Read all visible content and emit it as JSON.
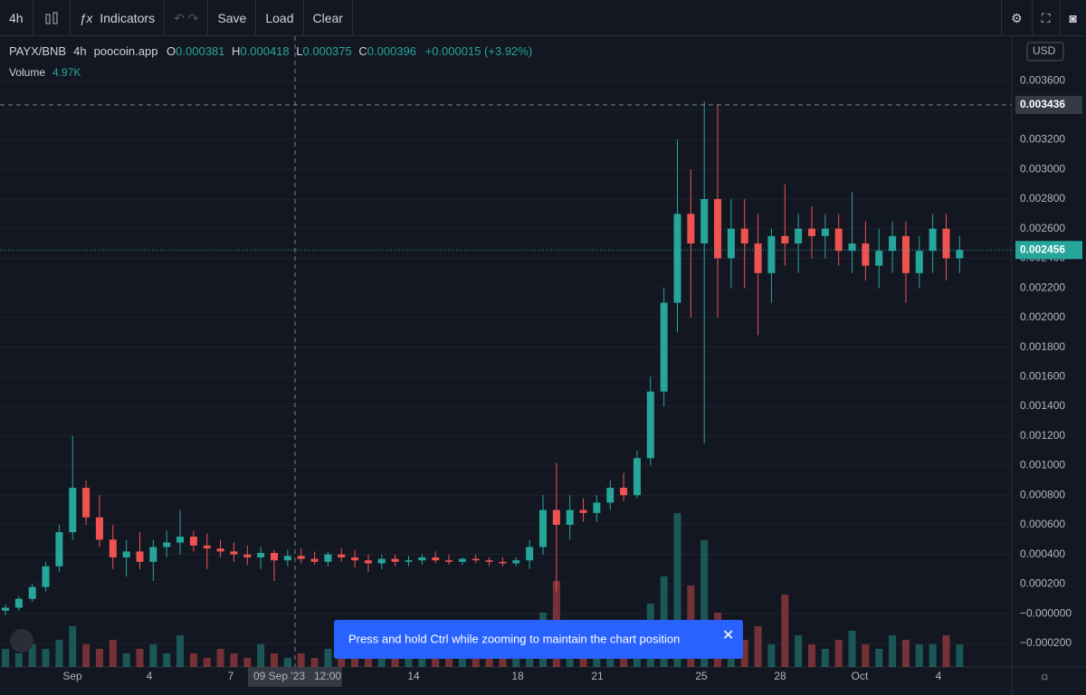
{
  "toolbar": {
    "interval": "4h",
    "indicators": "Indicators",
    "save": "Save",
    "load": "Load",
    "clear": "Clear"
  },
  "legend": {
    "symbol": "PAYX/BNB",
    "interval": "4h",
    "source": "poocoin.app",
    "o_label": "O",
    "o": "0.000381",
    "h_label": "H",
    "h": "0.000418",
    "l_label": "L",
    "l": "0.000375",
    "c_label": "C",
    "c": "0.000396",
    "change": "+0.000015 (+3.92%)",
    "volume_label": "Volume",
    "volume": "4.97K"
  },
  "currency": "USD",
  "crosshair_time": "09 Sep '23   12:00",
  "toast": "Press and hold Ctrl while zooming to maintain the chart position",
  "chart_data": {
    "type": "candlestick",
    "up_color": "#26a69a",
    "down_color": "#ef5350",
    "ylim": [
      -0.00036,
      0.0039
    ],
    "yticks": [
      {
        "value": 0.0036,
        "label": "0.003600"
      },
      {
        "value": 0.0034,
        "label": "0.003400"
      },
      {
        "value": 0.0032,
        "label": "0.003200"
      },
      {
        "value": 0.003,
        "label": "0.003000"
      },
      {
        "value": 0.0028,
        "label": "0.002800"
      },
      {
        "value": 0.0026,
        "label": "0.002600"
      },
      {
        "value": 0.0024,
        "label": "0.002400"
      },
      {
        "value": 0.0022,
        "label": "0.002200"
      },
      {
        "value": 0.002,
        "label": "0.002000"
      },
      {
        "value": 0.0018,
        "label": "0.001800"
      },
      {
        "value": 0.0016,
        "label": "0.001600"
      },
      {
        "value": 0.0014,
        "label": "0.001400"
      },
      {
        "value": 0.0012,
        "label": "0.001200"
      },
      {
        "value": 0.001,
        "label": "0.001000"
      },
      {
        "value": 0.0008,
        "label": "0.000800"
      },
      {
        "value": 0.0006,
        "label": "0.000600"
      },
      {
        "value": 0.0004,
        "label": "0.000400"
      },
      {
        "value": 0.0002,
        "label": "0.000200"
      },
      {
        "value": 0,
        "label": "−0.000000"
      },
      {
        "value": -0.0002,
        "label": "−0.000200"
      }
    ],
    "xticks": [
      "Sep",
      "4",
      "7",
      "14",
      "18",
      "21",
      "25",
      "28",
      "Oct",
      "4"
    ],
    "price_lines": [
      {
        "value": 0.003436,
        "label": "0.003436"
      },
      {
        "value": 0.002456,
        "label": "0.002456"
      }
    ],
    "candles": [
      [
        2e-05,
        6e-05,
        -1e-05,
        4e-05
      ],
      [
        4e-05,
        0.00012,
        2e-05,
        0.0001
      ],
      [
        0.0001,
        0.0002,
        8e-05,
        0.00018
      ],
      [
        0.00018,
        0.00035,
        0.00015,
        0.00032
      ],
      [
        0.00032,
        0.0006,
        0.00028,
        0.00055
      ],
      [
        0.00055,
        0.0012,
        0.0005,
        0.00085
      ],
      [
        0.00085,
        0.0009,
        0.0006,
        0.00065
      ],
      [
        0.00065,
        0.0008,
        0.00045,
        0.0005
      ],
      [
        0.0005,
        0.0006,
        0.0003,
        0.00038
      ],
      [
        0.00038,
        0.0005,
        0.00025,
        0.00042
      ],
      [
        0.00042,
        0.00055,
        0.0003,
        0.00035
      ],
      [
        0.00035,
        0.0005,
        0.00022,
        0.00045
      ],
      [
        0.00045,
        0.00056,
        0.00038,
        0.00048
      ],
      [
        0.00048,
        0.0007,
        0.0004,
        0.00052
      ],
      [
        0.00052,
        0.00056,
        0.00042,
        0.00046
      ],
      [
        0.00046,
        0.00054,
        0.0003,
        0.00044
      ],
      [
        0.00044,
        0.0005,
        0.00038,
        0.00042
      ],
      [
        0.00042,
        0.00048,
        0.00035,
        0.0004
      ],
      [
        0.0004,
        0.00046,
        0.00033,
        0.00038
      ],
      [
        0.00038,
        0.00045,
        0.0003,
        0.00041
      ],
      [
        0.00041,
        0.00043,
        0.00022,
        0.00036
      ],
      [
        0.00036,
        0.00043,
        0.00032,
        0.00039
      ],
      [
        0.00039,
        0.00044,
        0.00034,
        0.00037
      ],
      [
        0.00037,
        0.00042,
        0.00033,
        0.00035
      ],
      [
        0.00035,
        0.00042,
        0.00032,
        0.0004
      ],
      [
        0.0004,
        0.00044,
        0.00035,
        0.00038
      ],
      [
        0.00038,
        0.00043,
        0.00031,
        0.00036
      ],
      [
        0.00036,
        0.0004,
        0.00028,
        0.00034
      ],
      [
        0.00034,
        0.0004,
        0.0003,
        0.00037
      ],
      [
        0.00037,
        0.0004,
        0.00032,
        0.00035
      ],
      [
        0.00035,
        0.00039,
        0.00032,
        0.00036
      ],
      [
        0.00036,
        0.0004,
        0.00033,
        0.00038
      ],
      [
        0.00038,
        0.00042,
        0.00034,
        0.00036
      ],
      [
        0.00036,
        0.0004,
        0.00033,
        0.00035
      ],
      [
        0.00035,
        0.00038,
        0.00033,
        0.00037
      ],
      [
        0.00037,
        0.0004,
        0.00034,
        0.00036
      ],
      [
        0.00036,
        0.00038,
        0.00032,
        0.00035
      ],
      [
        0.00035,
        0.00038,
        0.00032,
        0.00034
      ],
      [
        0.00034,
        0.00038,
        0.00032,
        0.00036
      ],
      [
        0.00036,
        0.0005,
        0.0003,
        0.00045
      ],
      [
        0.00045,
        0.0008,
        0.0004,
        0.0007
      ],
      [
        0.0007,
        0.00102,
        0.00015,
        0.0006
      ],
      [
        0.0006,
        0.0008,
        0.0005,
        0.0007
      ],
      [
        0.0007,
        0.00078,
        0.00062,
        0.00068
      ],
      [
        0.00068,
        0.0008,
        0.00062,
        0.00075
      ],
      [
        0.00075,
        0.0009,
        0.0007,
        0.00085
      ],
      [
        0.00085,
        0.00095,
        0.00076,
        0.0008
      ],
      [
        0.0008,
        0.0011,
        0.00078,
        0.00105
      ],
      [
        0.00105,
        0.0016,
        0.001,
        0.0015
      ],
      [
        0.0015,
        0.0022,
        0.0014,
        0.0021
      ],
      [
        0.0021,
        0.0032,
        0.0019,
        0.0027
      ],
      [
        0.0027,
        0.003,
        0.002,
        0.0025
      ],
      [
        0.0025,
        0.00346,
        0.00115,
        0.0028
      ],
      [
        0.0028,
        0.00344,
        0.002,
        0.0024
      ],
      [
        0.0024,
        0.0028,
        0.0022,
        0.0026
      ],
      [
        0.0026,
        0.0028,
        0.0022,
        0.0025
      ],
      [
        0.0025,
        0.0027,
        0.00188,
        0.0023
      ],
      [
        0.0023,
        0.0026,
        0.0021,
        0.00255
      ],
      [
        0.00255,
        0.0029,
        0.00235,
        0.0025
      ],
      [
        0.0025,
        0.0027,
        0.0023,
        0.0026
      ],
      [
        0.0026,
        0.00275,
        0.0024,
        0.00255
      ],
      [
        0.00255,
        0.0027,
        0.0024,
        0.0026
      ],
      [
        0.0026,
        0.0027,
        0.00235,
        0.00245
      ],
      [
        0.00245,
        0.00285,
        0.0023,
        0.0025
      ],
      [
        0.0025,
        0.00265,
        0.00225,
        0.00235
      ],
      [
        0.00235,
        0.0026,
        0.0022,
        0.00245
      ],
      [
        0.00245,
        0.00265,
        0.0023,
        0.00255
      ],
      [
        0.00255,
        0.00265,
        0.0021,
        0.0023
      ],
      [
        0.0023,
        0.00255,
        0.0022,
        0.00245
      ],
      [
        0.00245,
        0.0027,
        0.0023,
        0.0026
      ],
      [
        0.0026,
        0.0027,
        0.00225,
        0.0024
      ],
      [
        0.0024,
        0.00255,
        0.0023,
        0.002456
      ]
    ],
    "volume": [
      4,
      3,
      5,
      4,
      6,
      9,
      5,
      4,
      6,
      3,
      4,
      5,
      3,
      7,
      3,
      2,
      4,
      3,
      2,
      5,
      3,
      2,
      3,
      2,
      4,
      2,
      3,
      2,
      3,
      2,
      2,
      3,
      2,
      2,
      3,
      2,
      2,
      3,
      4,
      8,
      12,
      19,
      6,
      5,
      4,
      7,
      5,
      9,
      14,
      20,
      34,
      18,
      28,
      12,
      8,
      6,
      9,
      5,
      16,
      7,
      5,
      4,
      6,
      8,
      5,
      4,
      7,
      6,
      5,
      5,
      7,
      4.97
    ]
  }
}
